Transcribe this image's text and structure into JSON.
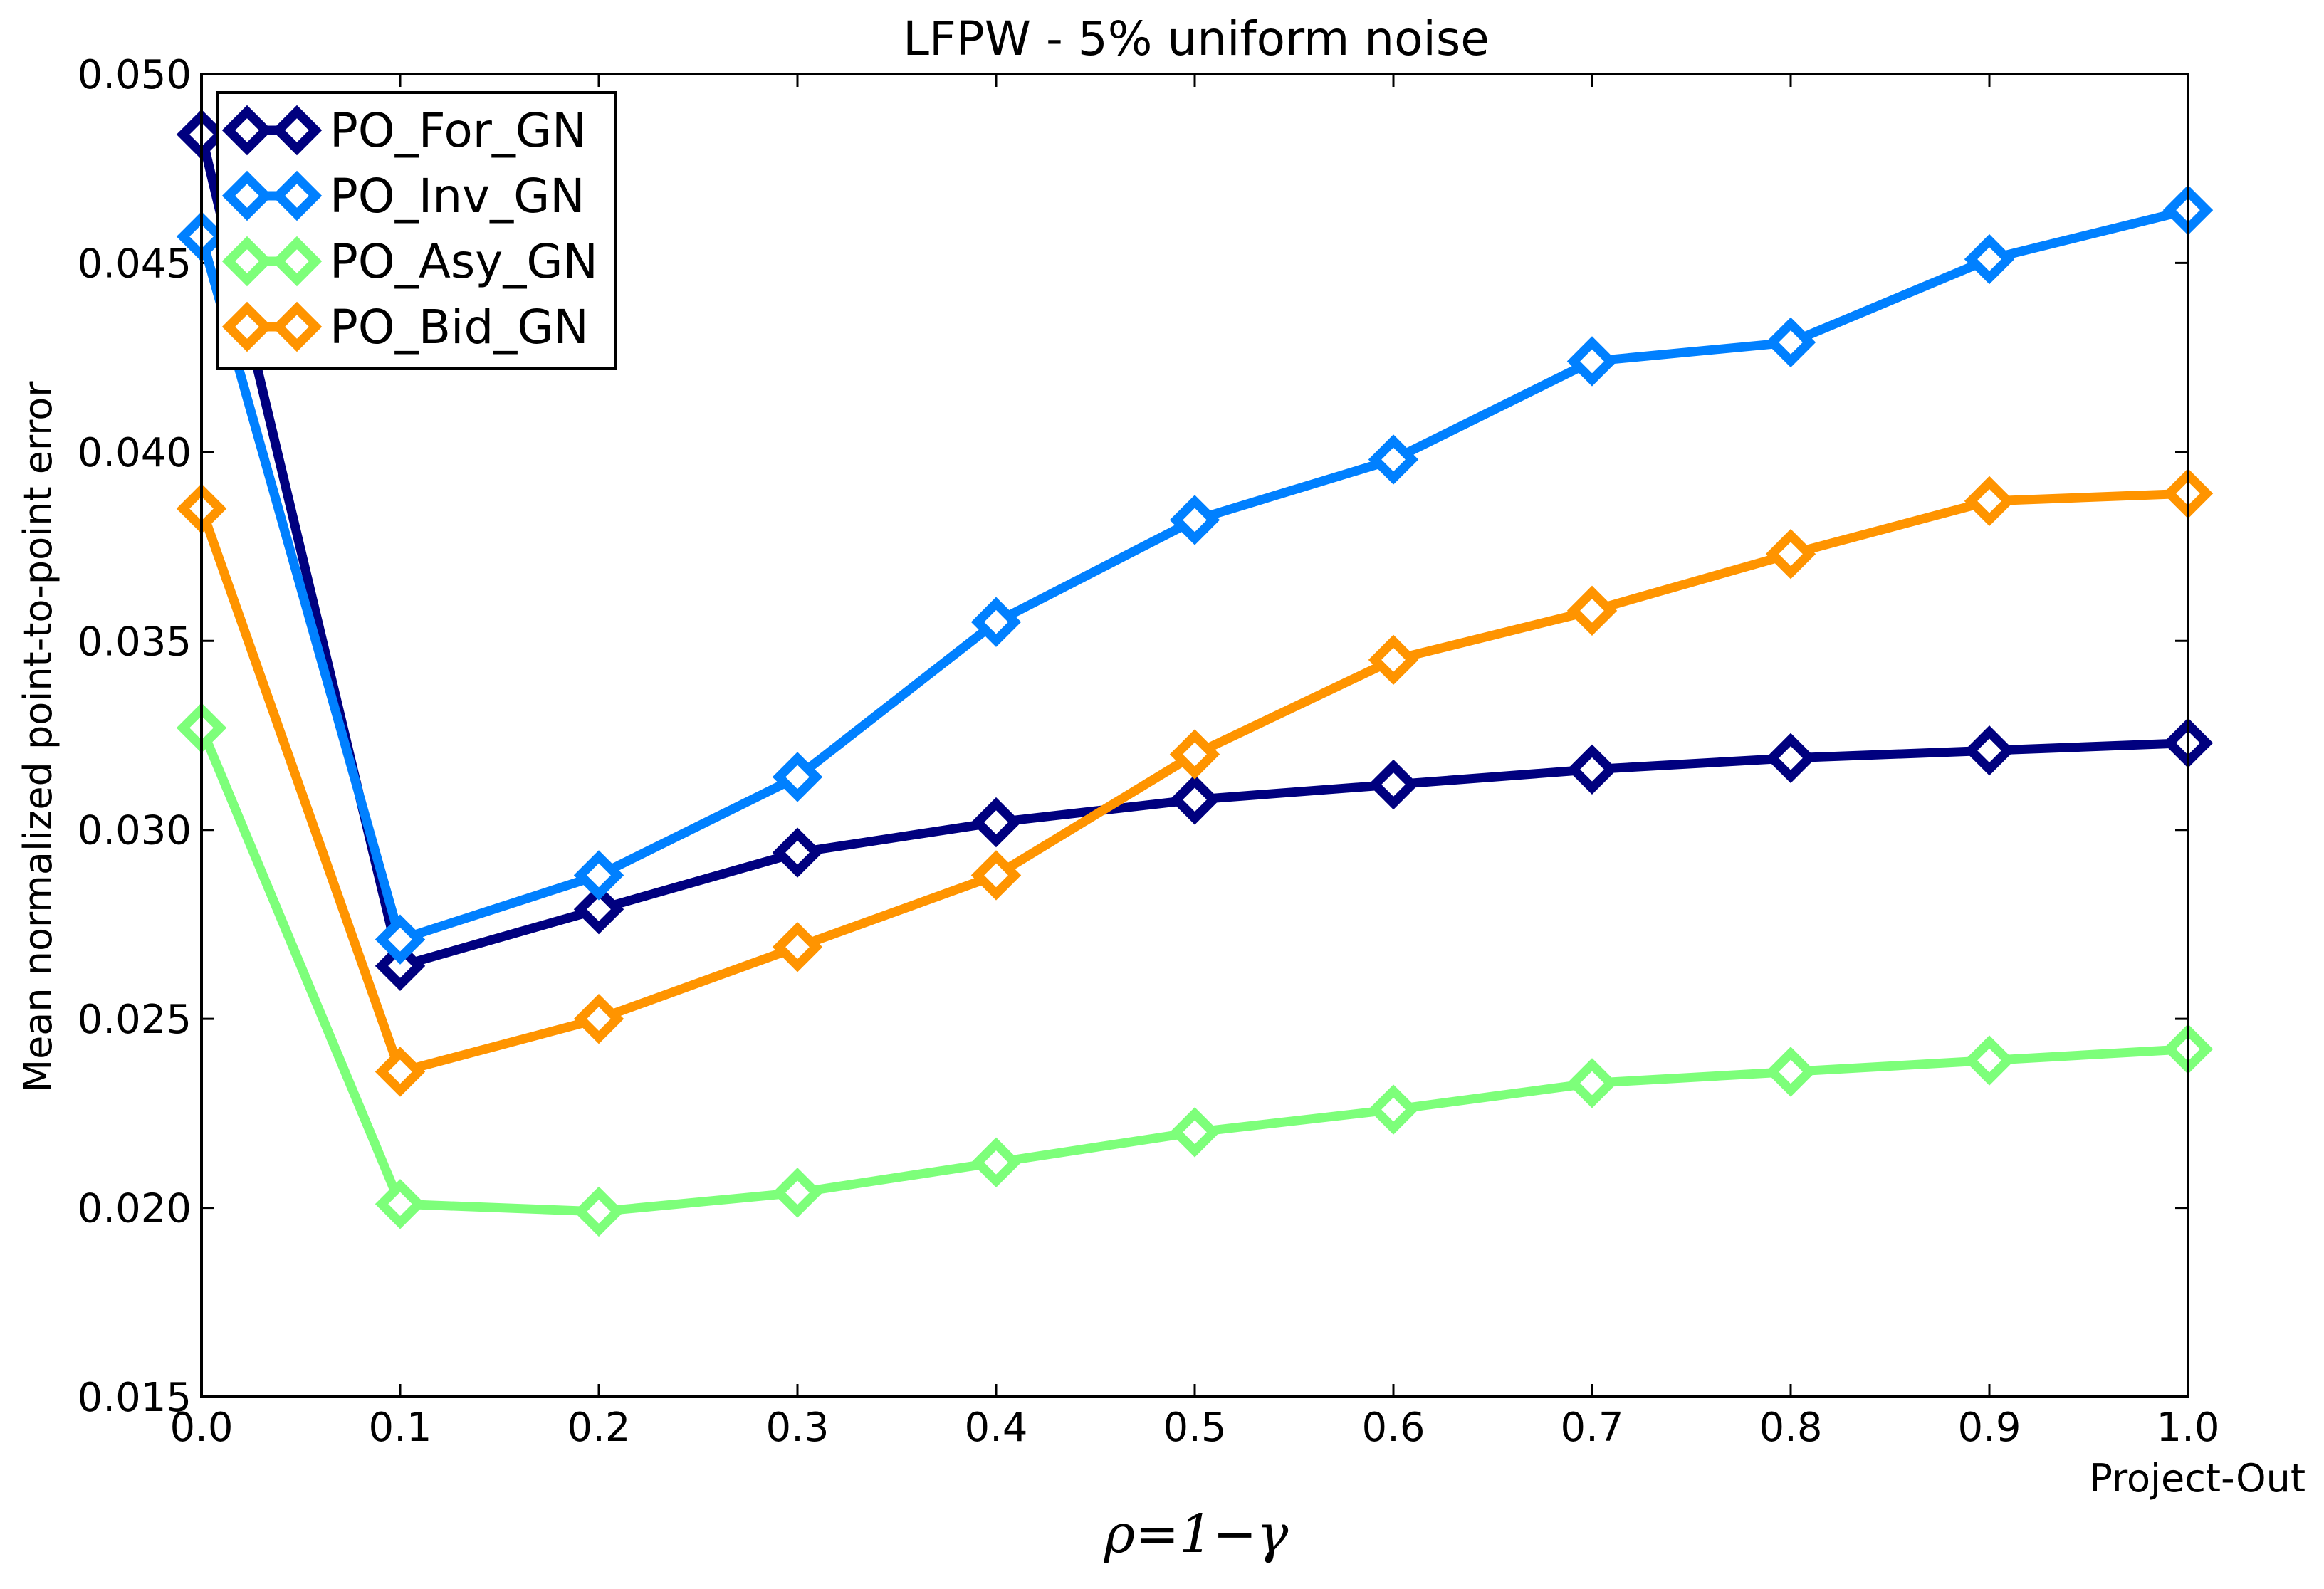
{
  "chart_data": {
    "type": "line",
    "title": "LFPW - 5% uniform noise",
    "xlabel": "ρ=1−γ",
    "x_end_annotation": "Project-Out",
    "ylabel": "Mean normalized point-to-point error",
    "xlim": [
      0.0,
      1.0
    ],
    "ylim": [
      0.015,
      0.05
    ],
    "x_ticks": [
      0.0,
      0.1,
      0.2,
      0.3,
      0.4,
      0.5,
      0.6,
      0.7,
      0.8,
      0.9,
      1.0
    ],
    "x_tick_labels": [
      "0.0",
      "0.1",
      "0.2",
      "0.3",
      "0.4",
      "0.5",
      "0.6",
      "0.7",
      "0.8",
      "0.9",
      "1.0"
    ],
    "y_ticks": [
      0.015,
      0.02,
      0.025,
      0.03,
      0.035,
      0.04,
      0.045,
      0.05
    ],
    "y_tick_labels": [
      "0.015",
      "0.020",
      "0.025",
      "0.030",
      "0.035",
      "0.040",
      "0.045",
      "0.050"
    ],
    "grid": false,
    "legend_position": "top-left",
    "marker": "diamond-open",
    "x": [
      0.0,
      0.1,
      0.2,
      0.3,
      0.4,
      0.5,
      0.6,
      0.7,
      0.8,
      0.9,
      1.0
    ],
    "series": [
      {
        "name": "PO_For_GN",
        "color": "#00007f",
        "values": [
          0.0484,
          0.0264,
          0.0279,
          0.0294,
          0.0302,
          0.0308,
          0.0312,
          0.0316,
          0.0319,
          0.0321,
          0.0323
        ]
      },
      {
        "name": "PO_Inv_GN",
        "color": "#0080ff",
        "values": [
          0.0457,
          0.0271,
          0.0288,
          0.0314,
          0.0355,
          0.0382,
          0.0398,
          0.0424,
          0.0429,
          0.0451,
          0.0464
        ]
      },
      {
        "name": "PO_Asy_GN",
        "color": "#7dff7a",
        "values": [
          0.0327,
          0.0201,
          0.0199,
          0.0204,
          0.0212,
          0.022,
          0.0226,
          0.0233,
          0.0236,
          0.0239,
          0.0242
        ]
      },
      {
        "name": "PO_Bid_GN",
        "color": "#ff9400",
        "values": [
          0.0385,
          0.0236,
          0.025,
          0.0269,
          0.0288,
          0.032,
          0.0345,
          0.0358,
          0.0373,
          0.0387,
          0.0389
        ]
      }
    ]
  }
}
